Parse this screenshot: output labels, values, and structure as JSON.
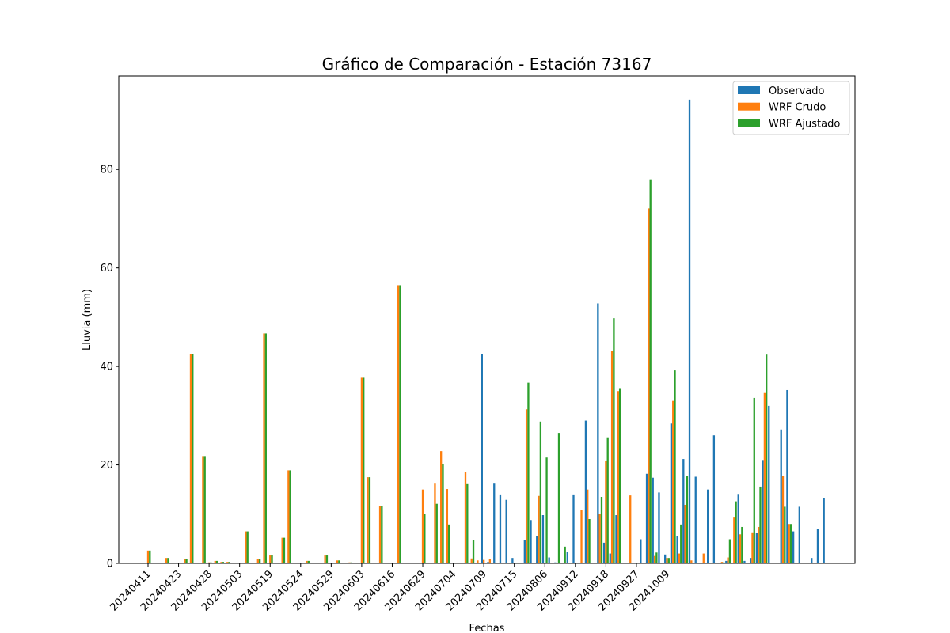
{
  "chart_data": {
    "type": "bar",
    "title": "Gráfico de Comparación - Estación 73167",
    "xlabel": "Fechas",
    "ylabel": "Lluvia (mm)",
    "ylim": [
      0,
      99
    ],
    "yticks": [
      0,
      20,
      40,
      60,
      80
    ],
    "grid": false,
    "legend_position": "top-right",
    "xtick_labels": [
      "20240411",
      "20240423",
      "20240428",
      "20240503",
      "20240519",
      "20240524",
      "20240529",
      "20240603",
      "20240616",
      "20240629",
      "20240704",
      "20240709",
      "20240715",
      "20240806",
      "20240912",
      "20240918",
      "20240927",
      "20241009"
    ],
    "xtick_every": 5,
    "colors": {
      "Observado": "#1f77b4",
      "WRF Crudo": "#ff7f0e",
      "WRF Ajustado": "#2ca02c"
    },
    "series": [
      {
        "name": "Observado",
        "values": [
          0,
          0,
          0,
          0,
          0,
          0,
          0,
          0,
          0,
          0,
          0,
          0,
          0,
          0,
          0,
          0,
          0,
          0,
          0,
          0,
          0,
          0,
          0,
          0,
          0,
          0,
          0,
          0,
          0,
          0,
          0,
          0,
          0,
          0,
          0,
          0,
          0,
          0,
          0,
          0,
          0,
          0,
          0,
          0,
          0,
          0,
          0,
          0,
          0,
          0,
          0,
          0,
          0,
          0,
          0,
          42.5,
          0.3,
          16.2,
          14,
          12.9,
          1.1,
          0,
          4.8,
          8.8,
          5.6,
          9.8,
          1.2,
          0.2,
          0,
          2.3,
          14,
          0,
          29,
          0,
          52.8,
          4.2,
          2,
          9.8,
          0,
          0,
          0,
          4.9,
          18.2,
          17.4,
          14.4,
          1.8,
          28.4,
          5.5,
          21.2,
          94.2,
          17.6,
          0,
          15,
          26,
          0,
          0.5,
          0,
          14.1,
          0.5,
          1.1,
          6.2,
          21,
          32,
          0,
          27.2,
          35.2,
          6.5,
          11.5,
          0.1,
          1.1,
          7,
          13.3
        ]
      },
      {
        "name": "WRF Crudo",
        "values": [
          2.6,
          0,
          0.1,
          1.1,
          0,
          0,
          0.9,
          42.5,
          0,
          21.8,
          0.2,
          0.5,
          0.3,
          0.3,
          0,
          0,
          6.5,
          0,
          0.8,
          46.7,
          1.6,
          0,
          5.2,
          18.9,
          0,
          0,
          0.5,
          0,
          0,
          1.6,
          0,
          0.6,
          0,
          0.2,
          0,
          37.7,
          17.5,
          0,
          11.7,
          0,
          0,
          56.5,
          0,
          0,
          0,
          15,
          0,
          16.2,
          22.8,
          15.1,
          0,
          0,
          18.6,
          1,
          0.6,
          0.7,
          0.8,
          0,
          0,
          0,
          0,
          0,
          31.3,
          0,
          13.7,
          0,
          0,
          0,
          0,
          0,
          0,
          10.9,
          15,
          0,
          10.1,
          20.9,
          43.2,
          35,
          0,
          13.8,
          0,
          0,
          72.1,
          1.5,
          0,
          1.1,
          33,
          2,
          11.9,
          0.6,
          0,
          2,
          0,
          0,
          0.3,
          1.2,
          9.3,
          5.9,
          0,
          6.3,
          7.4,
          34.6,
          0,
          0,
          17.8,
          8
        ]
      },
      {
        "name": "WRF Ajustado",
        "values": [
          2.6,
          0,
          0.1,
          1.1,
          0,
          0,
          0.9,
          42.5,
          0,
          21.8,
          0.2,
          0.5,
          0.3,
          0.3,
          0,
          0,
          6.5,
          0,
          0.8,
          46.7,
          1.6,
          0,
          5.2,
          18.9,
          0,
          0,
          0.5,
          0,
          0,
          1.6,
          0,
          0.6,
          0,
          0.2,
          0,
          37.7,
          17.5,
          0,
          11.7,
          0,
          0,
          56.5,
          0,
          0,
          0,
          10.1,
          0,
          12.1,
          20.1,
          7.9,
          0,
          0,
          16.1,
          4.8,
          0,
          0,
          0,
          0,
          0,
          0,
          0,
          0,
          36.7,
          0,
          28.8,
          21.5,
          0,
          26.5,
          3.4,
          0,
          0,
          0,
          9,
          0,
          13.5,
          25.6,
          49.8,
          35.6,
          0,
          0,
          0,
          0,
          78,
          2.2,
          0,
          1.1,
          39.2,
          7.9,
          17.8,
          0,
          0,
          0,
          0,
          0,
          0.2,
          4.9,
          12.6,
          7.4,
          0,
          33.6,
          15.6,
          42.4,
          0,
          0,
          11.5,
          8
        ]
      }
    ]
  }
}
